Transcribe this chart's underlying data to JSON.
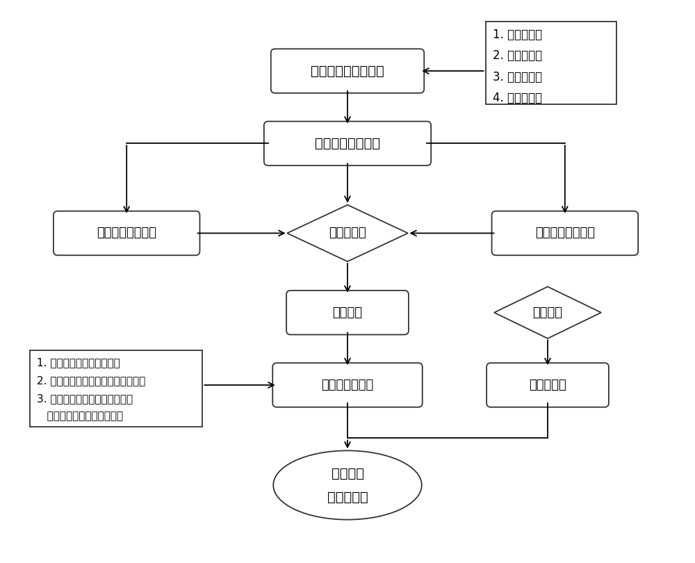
{
  "background_color": "#ffffff",
  "nodes": {
    "build_model": {
      "text": "建立舱门有限元模型",
      "type": "rounded_rect"
    },
    "output_file": {
      "text": "输出模型数据文件",
      "type": "rounded_rect"
    },
    "full_model": {
      "text": "完整结构计算模型",
      "type": "rounded_rect"
    },
    "batch_file": {
      "text": "批处理文件",
      "type": "diamond"
    },
    "damage_model": {
      "text": "破损安全计算模型",
      "type": "rounded_rect"
    },
    "static_calc": {
      "text": "静力计算",
      "type": "rounded_rect"
    },
    "region_param": {
      "text": "区域参数",
      "type": "diamond"
    },
    "post_process": {
      "text": "计算结果后处理",
      "type": "rounded_rect"
    },
    "allowable": {
      "text": "计算许用值",
      "type": "rounded_rect"
    },
    "stress_check": {
      "text": "应力检查\n稳定性计算",
      "type": "ellipse"
    },
    "notes_top": {
      "text": "1. 区域划分；\n2. 单元方向；\n3. 单元编号；\n4. 节点编号。",
      "type": "rect_note"
    },
    "notes_bottom": {
      "text": "1. 挑选应力检查工作应力；\n2. 挑选缘条稳定性计算的工作应力；\n3. 由节点平衡力计算蒙皮和梁腹\n   板稳定性计算的工作应力。",
      "type": "rect_note"
    }
  }
}
